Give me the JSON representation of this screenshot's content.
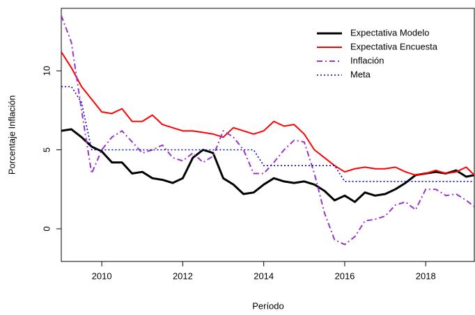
{
  "chart_data": {
    "type": "line",
    "xlabel": "Período",
    "ylabel": "Porcentaje Inflación",
    "x": [
      2009.0,
      2009.25,
      2009.5,
      2009.75,
      2010.0,
      2010.25,
      2010.5,
      2010.75,
      2011.0,
      2011.25,
      2011.5,
      2011.75,
      2012.0,
      2012.25,
      2012.5,
      2012.75,
      2013.0,
      2013.25,
      2013.5,
      2013.75,
      2014.0,
      2014.25,
      2014.5,
      2014.75,
      2015.0,
      2015.25,
      2015.5,
      2015.75,
      2016.0,
      2016.25,
      2016.5,
      2016.75,
      2017.0,
      2017.25,
      2017.5,
      2017.75,
      2018.0,
      2018.25,
      2018.5,
      2018.75,
      2019.0,
      2019.2
    ],
    "series": [
      {
        "name": "Expectativa Modelo",
        "color": "#000000",
        "style": "solid",
        "width": 3,
        "values": [
          6.2,
          6.3,
          5.8,
          5.2,
          4.9,
          4.2,
          4.2,
          3.5,
          3.6,
          3.2,
          3.1,
          2.9,
          3.2,
          4.5,
          5.0,
          4.8,
          3.2,
          2.8,
          2.2,
          2.3,
          2.8,
          3.2,
          3.0,
          2.9,
          3.0,
          2.8,
          2.4,
          1.8,
          2.1,
          1.7,
          2.3,
          2.1,
          2.2,
          2.5,
          2.9,
          3.4,
          3.5,
          3.6,
          3.5,
          3.7,
          3.3,
          3.4
        ]
      },
      {
        "name": "Expectativa Encuesta",
        "color": "#ff0000",
        "style": "solid",
        "width": 2,
        "values": [
          11.2,
          10.2,
          9.0,
          8.2,
          7.4,
          7.3,
          7.6,
          6.8,
          6.8,
          7.2,
          6.6,
          6.4,
          6.2,
          6.2,
          6.1,
          6.0,
          5.8,
          6.4,
          6.2,
          6.0,
          6.2,
          6.8,
          6.5,
          6.6,
          6.0,
          5.0,
          4.5,
          4.0,
          3.6,
          3.8,
          3.9,
          3.8,
          3.8,
          3.9,
          3.6,
          3.4,
          3.5,
          3.7,
          3.5,
          3.6,
          3.9,
          3.4
        ]
      },
      {
        "name": "Inflación",
        "color": "#9932cc",
        "style": "dashdot",
        "width": 2,
        "values": [
          13.5,
          11.8,
          7.5,
          3.5,
          5.0,
          5.8,
          6.2,
          5.5,
          4.8,
          5.0,
          5.3,
          4.5,
          4.3,
          4.8,
          4.2,
          4.6,
          6.2,
          5.8,
          5.0,
          3.5,
          3.5,
          4.2,
          5.0,
          5.6,
          5.5,
          3.5,
          1.0,
          -0.7,
          -1.0,
          -0.5,
          0.5,
          0.6,
          0.8,
          1.5,
          1.7,
          1.2,
          2.5,
          2.5,
          2.1,
          2.2,
          1.8,
          1.4
        ]
      },
      {
        "name": "Meta",
        "color": "#0000cd",
        "style": "dotted",
        "width": 1.6,
        "values": [
          9,
          9,
          8,
          5,
          5,
          5,
          5,
          5,
          5,
          5,
          5,
          5,
          5,
          5,
          5,
          5,
          5,
          5,
          5,
          5,
          4,
          4,
          4,
          4,
          4,
          4,
          4,
          4,
          3,
          3,
          3,
          3,
          3,
          3,
          3,
          3,
          3,
          3,
          3,
          3,
          3,
          3
        ]
      }
    ],
    "xlim": [
      2009.0,
      2019.2
    ],
    "ylim": [
      -2.07,
      13.96
    ],
    "xticks": [
      2010,
      2012,
      2014,
      2016,
      2018
    ],
    "yticks": [
      0,
      5,
      10
    ],
    "legend": "top-right",
    "grid": false
  }
}
